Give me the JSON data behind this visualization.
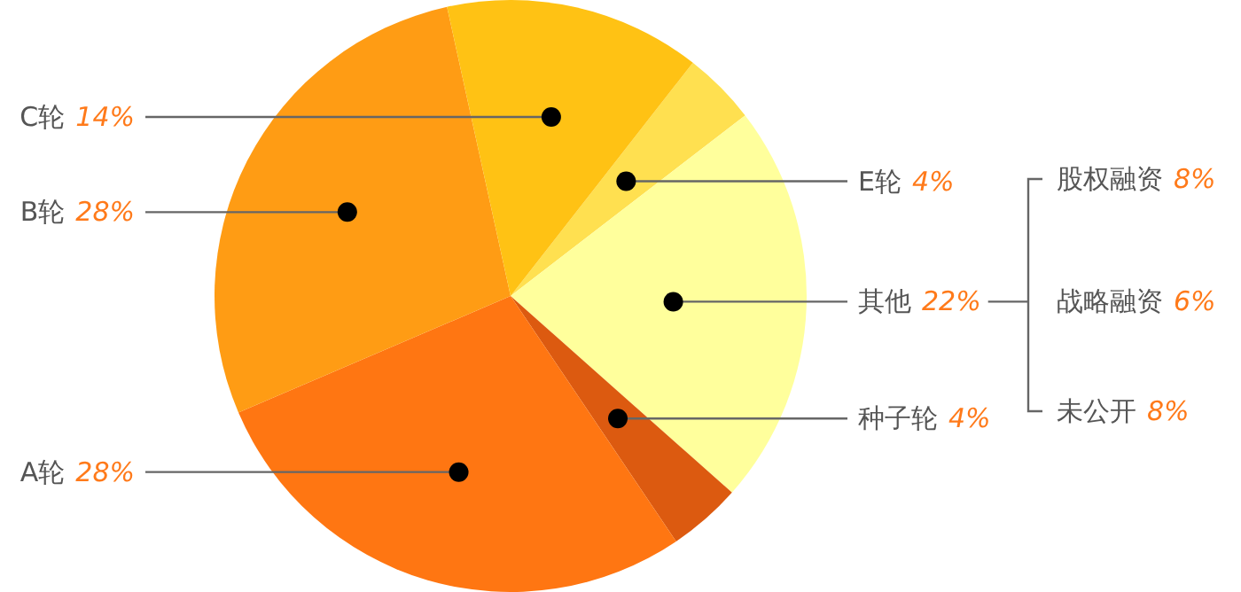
{
  "chart_data": {
    "type": "pie",
    "categories": [
      "E轮",
      "其他",
      "种子轮",
      "A轮",
      "B轮",
      "C轮"
    ],
    "values": [
      4,
      22,
      4,
      28,
      28,
      14
    ],
    "colors": [
      "#ffe050",
      "#ffff9c",
      "#dc5a10",
      "#ff7612",
      "#ff9c14",
      "#ffc214"
    ],
    "value_labels": [
      "4%",
      "22%",
      "4%",
      "28%",
      "28%",
      "14%"
    ],
    "annotations": [
      "股权融资 8%",
      "战略融资 6%",
      "未公开 8%"
    ]
  }
}
